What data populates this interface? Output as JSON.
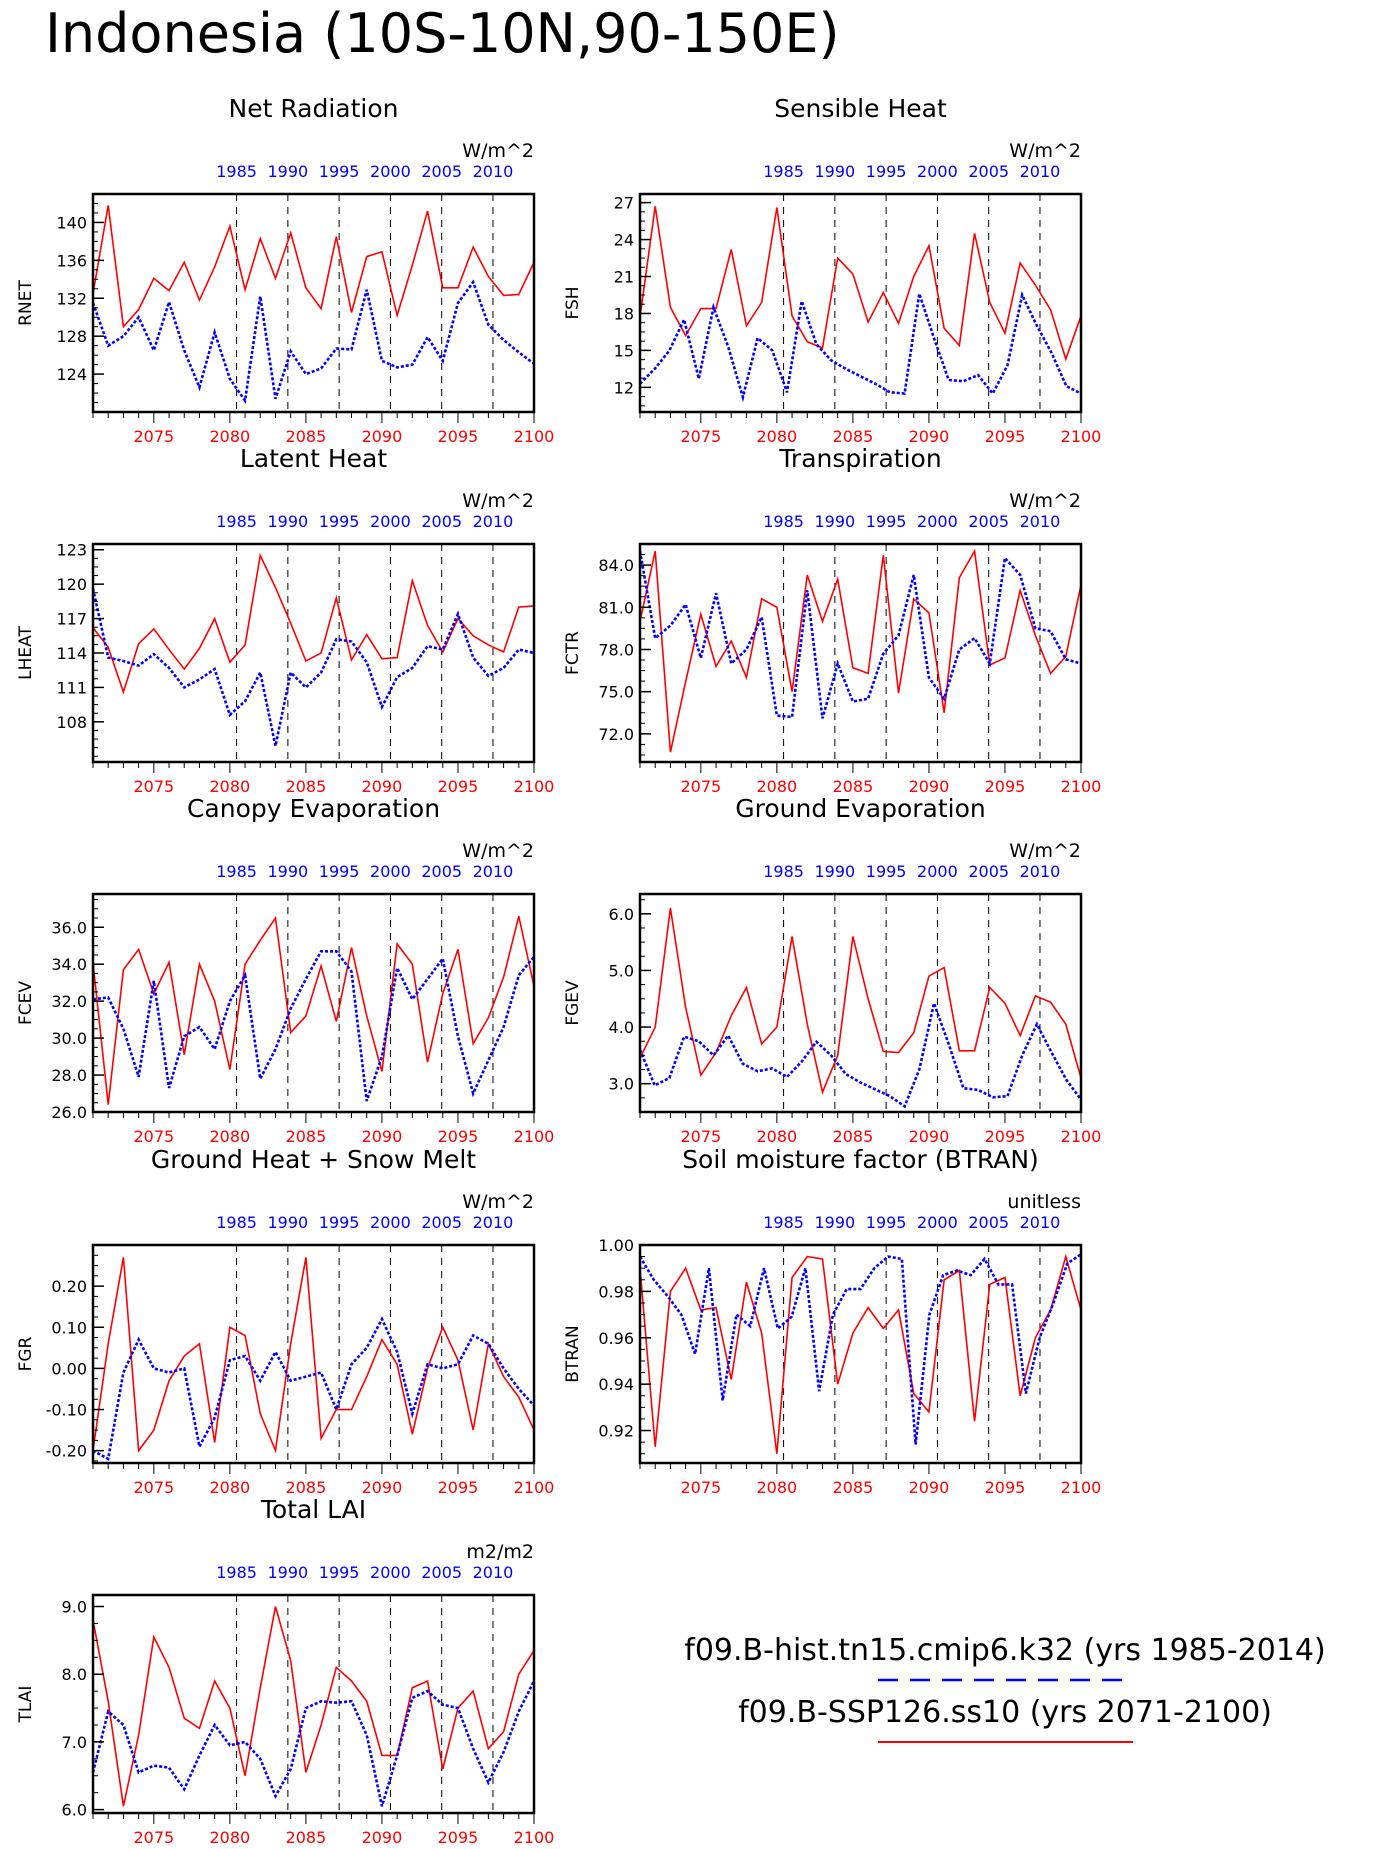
{
  "title": "Indonesia (10S-10N,90-150E)",
  "colors": {
    "hist": "#0000ff",
    "future": "#ff0000",
    "axis": "#000000"
  },
  "legend": {
    "hist_label": "f09.B-hist.tn15.cmip6.k32 (yrs 1985-2014)",
    "future_label": "f09.B-SSP126.ss10 (yrs 2071-2100)"
  },
  "top_axis": {
    "years": [
      1971,
      2014
    ],
    "ticks": [
      "1985",
      "1990",
      "1995",
      "2000",
      "2005",
      "2010"
    ]
  },
  "bottom_axis": {
    "years": [
      2071,
      2100
    ],
    "ticks": [
      "2075",
      "2080",
      "2085",
      "2090",
      "2095",
      "2100"
    ]
  },
  "chart_data": [
    {
      "type": "line",
      "title": "Net Radiation",
      "ylabel": "RNET",
      "units": "W/m^2",
      "ylim": [
        120,
        143
      ],
      "yticks": [
        "124",
        "128",
        "132",
        "136",
        "140"
      ],
      "series": [
        {
          "values": [
            131.5,
            127,
            128,
            130,
            126.5,
            131.6,
            126.5,
            122.6,
            128.4,
            123.5,
            121.2,
            132.2,
            121.4,
            126.4,
            124,
            124.6,
            126.7,
            126.6,
            132.9,
            125.4,
            124.7,
            125,
            127.9,
            125.4,
            131.5,
            133.7,
            129.2,
            127.6,
            126.3,
            125.1
          ]
        },
        {
          "values": [
            132.5,
            141.8,
            129,
            130.8,
            134.1,
            132.8,
            135.8,
            131.8,
            135.3,
            139.6,
            132.9,
            138.3,
            134.1,
            138.9,
            133.1,
            130.9,
            138.5,
            130.5,
            136.4,
            136.9,
            130.2,
            135.5,
            141.2,
            133.1,
            133.1,
            137.4,
            134.3,
            132.3,
            132.4,
            135.8
          ]
        }
      ]
    },
    {
      "type": "line",
      "title": "Sensible Heat",
      "ylabel": "FSH",
      "units": "W/m^2",
      "ylim": [
        10,
        27.7
      ],
      "yticks": [
        "12",
        "15",
        "18",
        "21",
        "24",
        "27"
      ],
      "series": [
        {
          "values": [
            12.3,
            13.5,
            15,
            17.5,
            12.7,
            18.5,
            15.3,
            11.2,
            16,
            15,
            11.6,
            19,
            15.5,
            14.2,
            13.5,
            12.9,
            12.3,
            11.6,
            11.5,
            19.6,
            16,
            12.6,
            12.5,
            13,
            11.5,
            13.8,
            19.5,
            17,
            14.8,
            12.1,
            11.5
          ]
        },
        {
          "values": [
            17.7,
            26.7,
            18.5,
            16.2,
            18.4,
            18.4,
            23.2,
            17,
            18.9,
            26.6,
            17.8,
            15.7,
            15.2,
            22.5,
            21.2,
            17.3,
            19.7,
            17.2,
            21,
            23.5,
            16.8,
            15.4,
            24.5,
            18.9,
            16.4,
            22.1,
            20.3,
            18.3,
            14.3,
            17.8
          ]
        }
      ]
    },
    {
      "type": "line",
      "title": "Latent Heat",
      "ylabel": "LHEAT",
      "units": "W/m^2",
      "ylim": [
        104.5,
        123.5
      ],
      "yticks": [
        "108",
        "111",
        "114",
        "117",
        "120",
        "123"
      ],
      "series": [
        {
          "values": [
            119.6,
            113.6,
            113.3,
            112.9,
            113.9,
            112.7,
            111,
            111.7,
            112.6,
            108.6,
            109.8,
            112.3,
            105.9,
            112.3,
            111,
            112.3,
            115.2,
            115,
            113.2,
            109.3,
            111.9,
            112.7,
            114.6,
            114.3,
            117.4,
            113.6,
            112,
            112.7,
            114.3,
            114
          ]
        },
        {
          "values": [
            116.2,
            114.5,
            110.6,
            114.8,
            116.1,
            114.3,
            112.6,
            114.4,
            117,
            113.2,
            114.7,
            122.5,
            119.7,
            116.6,
            113.3,
            114,
            118.8,
            113.4,
            115.6,
            113.5,
            113.6,
            120.3,
            116.4,
            114.1,
            117,
            115.5,
            114.7,
            114.1,
            118,
            118.1
          ]
        }
      ]
    },
    {
      "type": "line",
      "title": "Transpiration",
      "ylabel": "FCTR",
      "units": "W/m^2",
      "ylim": [
        70,
        85.5
      ],
      "yticks": [
        "72.0",
        "75.0",
        "78.0",
        "81.0",
        "84.0"
      ],
      "series": [
        {
          "values": [
            85,
            78.8,
            79.7,
            81.2,
            77.4,
            82,
            77,
            78,
            80.3,
            73.3,
            73.2,
            82.2,
            73.1,
            77,
            74.3,
            74.5,
            77.7,
            79,
            83.3,
            76,
            74.5,
            78,
            78.8,
            77,
            84.5,
            83.3,
            79.5,
            79.3,
            77.3,
            77
          ]
        },
        {
          "values": [
            80,
            85,
            70.7,
            75.7,
            80.5,
            76.8,
            78.6,
            76,
            81.6,
            81,
            75,
            83.3,
            80,
            83,
            76.7,
            76.3,
            84.7,
            74.9,
            81.6,
            80.6,
            73.5,
            83.1,
            85,
            76.9,
            77.4,
            82.2,
            79,
            76.3,
            77.5,
            82.6
          ]
        }
      ]
    },
    {
      "type": "line",
      "title": "Canopy Evaporation",
      "ylabel": "FCEV",
      "units": "W/m^2",
      "ylim": [
        26,
        37.8
      ],
      "yticks": [
        "26.0",
        "28.0",
        "30.0",
        "32.0",
        "34.0",
        "36.0"
      ],
      "series": [
        {
          "values": [
            32.1,
            32.2,
            30.5,
            27.9,
            33.1,
            27.3,
            30.1,
            30.6,
            29.4,
            32,
            33.4,
            27.8,
            29.4,
            31.6,
            33.2,
            34.7,
            34.7,
            33.6,
            26.6,
            29,
            33.8,
            32.1,
            33.2,
            34.3,
            30.1,
            27,
            28.8,
            30.6,
            33.4,
            34.4
          ]
        },
        {
          "values": [
            34.1,
            26.4,
            33.7,
            34.8,
            32.4,
            34.1,
            29.1,
            34,
            32,
            28.3,
            34,
            35.3,
            36.5,
            30.3,
            31.2,
            33.9,
            30.9,
            34.9,
            31.2,
            28.2,
            35.1,
            34,
            28.7,
            32.4,
            34.8,
            29.7,
            31.1,
            33.3,
            36.6,
            32.8
          ]
        }
      ]
    },
    {
      "type": "line",
      "title": "Ground Evaporation",
      "ylabel": "FGEV",
      "units": "W/m^2",
      "ylim": [
        2.5,
        6.35
      ],
      "yticks": [
        "3.0",
        "4.0",
        "5.0",
        "6.0"
      ],
      "series": [
        {
          "values": [
            3.6,
            2.97,
            3.1,
            3.83,
            3.75,
            3.5,
            3.85,
            3.35,
            3.22,
            3.27,
            3.12,
            3.39,
            3.74,
            3.5,
            3.17,
            3.02,
            2.9,
            2.78,
            2.6,
            3.25,
            4.42,
            3.7,
            2.92,
            2.89,
            2.76,
            2.78,
            3.5,
            4.05,
            3.55,
            3.07,
            2.72
          ]
        },
        {
          "values": [
            3.45,
            4,
            6.1,
            4.35,
            3.15,
            3.55,
            4.2,
            4.7,
            3.7,
            4,
            5.6,
            4.05,
            2.85,
            3.5,
            5.6,
            4.5,
            3.57,
            3.55,
            3.9,
            4.9,
            5.05,
            3.58,
            3.58,
            4.7,
            4.42,
            3.85,
            4.55,
            4.44,
            4.05,
            3.1
          ]
        }
      ]
    },
    {
      "type": "line",
      "title": "Ground Heat + Snow Melt",
      "ylabel": "FGR",
      "units": "W/m^2",
      "ylim": [
        -0.23,
        0.3
      ],
      "yticks": [
        "-0.20",
        "-0.10",
        "0.00",
        "0.10",
        "0.20"
      ],
      "series": [
        {
          "values": [
            -0.2,
            -0.22,
            -0.01,
            0.07,
            0,
            -0.01,
            0,
            -0.19,
            -0.12,
            0.02,
            0.03,
            -0.03,
            0.04,
            -0.03,
            -0.02,
            -0.01,
            -0.1,
            0.01,
            0.05,
            0.12,
            0.04,
            -0.11,
            0.01,
            0,
            0.01,
            0.08,
            0.06,
            0,
            -0.05,
            -0.09
          ]
        },
        {
          "values": [
            -0.2,
            0.06,
            0.27,
            -0.2,
            -0.15,
            -0.03,
            0.03,
            0.06,
            -0.18,
            0.1,
            0.08,
            -0.11,
            -0.2,
            0.06,
            0.27,
            -0.17,
            -0.1,
            -0.1,
            -0.02,
            0.07,
            0.01,
            -0.16,
            0,
            0.1,
            0.02,
            -0.15,
            0.06,
            -0.02,
            -0.07,
            -0.15
          ]
        }
      ]
    },
    {
      "type": "line",
      "title": "Soil moisture factor (BTRAN)",
      "ylabel": "BTRAN",
      "units": "unitless",
      "ylim": [
        0.906,
        1.0
      ],
      "yticks": [
        "0.92",
        "0.94",
        "0.96",
        "0.98",
        "1.00"
      ],
      "series": [
        {
          "values": [
            0.995,
            0.985,
            0.978,
            0.97,
            0.953,
            0.99,
            0.933,
            0.97,
            0.965,
            0.99,
            0.964,
            0.969,
            0.99,
            0.937,
            0.97,
            0.981,
            0.981,
            0.99,
            0.995,
            0.994,
            0.914,
            0.97,
            0.987,
            0.989,
            0.987,
            0.994,
            0.983,
            0.983,
            0.936,
            0.96,
            0.975,
            0.992,
            0.996
          ]
        },
        {
          "values": [
            0.99,
            0.913,
            0.98,
            0.99,
            0.972,
            0.973,
            0.942,
            0.984,
            0.962,
            0.91,
            0.986,
            0.995,
            0.994,
            0.94,
            0.962,
            0.973,
            0.964,
            0.972,
            0.936,
            0.928,
            0.985,
            0.989,
            0.924,
            0.983,
            0.986,
            0.935,
            0.96,
            0.972,
            0.995,
            0.972
          ]
        }
      ]
    },
    {
      "type": "line",
      "title": "Total LAI",
      "ylabel": "TLAI",
      "units": "m2/m2",
      "ylim": [
        5.95,
        9.17
      ],
      "yticks": [
        "6.0",
        "7.0",
        "8.0",
        "9.0"
      ],
      "series": [
        {
          "values": [
            6.55,
            7.45,
            7.25,
            6.55,
            6.65,
            6.62,
            6.3,
            6.8,
            7.25,
            6.95,
            7,
            6.75,
            6.2,
            6.6,
            7.5,
            7.6,
            7.58,
            7.6,
            7.1,
            6.05,
            6.8,
            7.65,
            7.75,
            7.55,
            7.5,
            6.9,
            6.4,
            6.85,
            7.45,
            7.9
          ]
        },
        {
          "values": [
            8.8,
            7.6,
            6.05,
            7.1,
            8.55,
            8.1,
            7.35,
            7.2,
            7.9,
            7.5,
            6.5,
            7.8,
            9,
            8.2,
            6.55,
            7.25,
            8.1,
            7.9,
            7.6,
            6.8,
            6.8,
            7.8,
            7.9,
            6.6,
            7.5,
            7.75,
            6.9,
            7.15,
            8,
            8.35
          ]
        }
      ]
    }
  ]
}
